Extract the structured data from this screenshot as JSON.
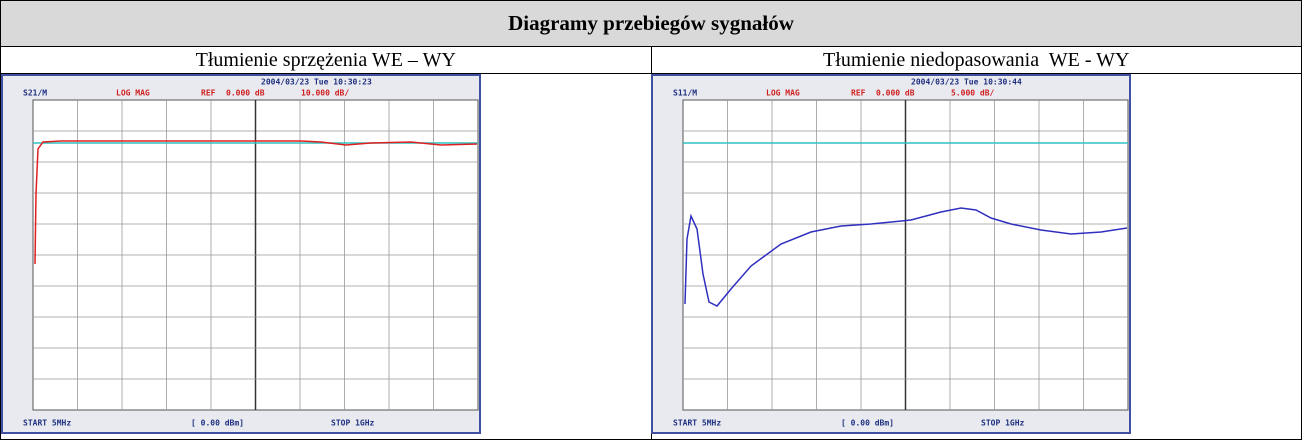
{
  "header": {
    "title": "Diagramy przebiegów sygnałów"
  },
  "columns": [
    {
      "caption": "Tłumienie sprzężenia WE – WY",
      "screen": {
        "date": "2004/03/23 Tue 10:30:23",
        "channel": "S21/M",
        "format": "LOG MAG",
        "ref_label": "REF",
        "ref": "0.000 dB",
        "scale": "10.000 dB/",
        "start": "START 5MHz",
        "power": "[ 0.00 dBm]",
        "stop": "STOP 1GHz"
      }
    },
    {
      "caption": "Tłumienie niedopasowania  WE - WY",
      "screen": {
        "date": "2004/03/23 Tue 10:30:44",
        "channel": "S11/M",
        "format": "LOG MAG",
        "ref_label": "REF",
        "ref": "0.000 dB",
        "scale": "5.000 dB/",
        "start": "START 5MHz",
        "power": "[ 0.00 dBm]",
        "stop": "STOP 1GHz"
      }
    }
  ]
}
